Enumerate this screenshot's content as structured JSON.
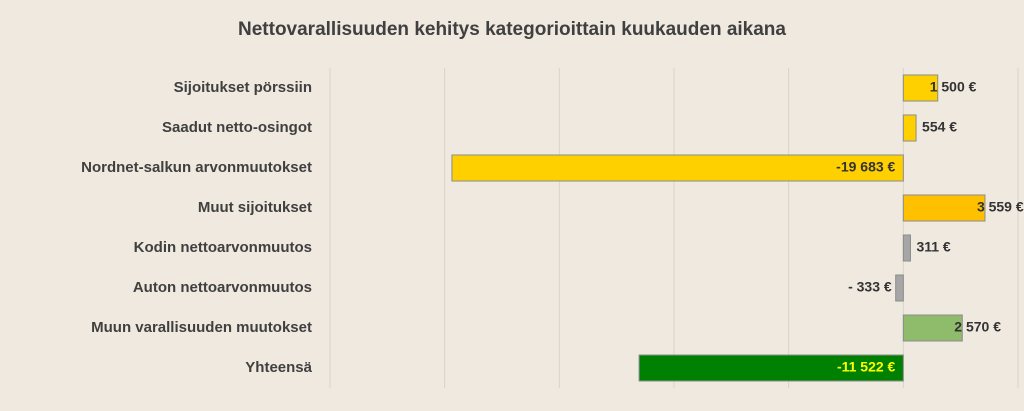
{
  "chart_data": {
    "type": "hbar",
    "title": "Nettovarallisuuden kehitys kategorioittain kuukauden aikana",
    "categories": [
      "Sijoitukset pörssiin",
      "Saadut netto-osingot",
      "Nordnet-salkun arvonmuutokset",
      "Muut sijoitukset",
      "Kodin nettoarvonmuutos",
      "Auton nettoarvonmuutos",
      "Muun varallisuuden muutokset",
      "Yhteensä"
    ],
    "values": [
      1500,
      554,
      -19683,
      3559,
      311,
      -333,
      2570,
      -11522
    ],
    "value_labels": [
      "1 500 €",
      "554 €",
      "-19 683 €",
      "3 559 €",
      "311 €",
      "- 333 €",
      "2 570 €",
      "-11 522 €"
    ],
    "colors": [
      "#ffd000",
      "#ffd000",
      "#ffd000",
      "#ffc000",
      "#a6a6a6",
      "#a6a6a6",
      "#8fbc6a",
      "#008000"
    ],
    "value_label_colors": [
      "#333333",
      "#333333",
      "#333333",
      "#333333",
      "#333333",
      "#333333",
      "#333333",
      "#ffff00"
    ],
    "xlim": [
      -25000,
      5000
    ],
    "xticks": [
      -25000,
      -20000,
      -15000,
      -10000,
      -5000,
      0,
      5000
    ],
    "grid": true
  }
}
